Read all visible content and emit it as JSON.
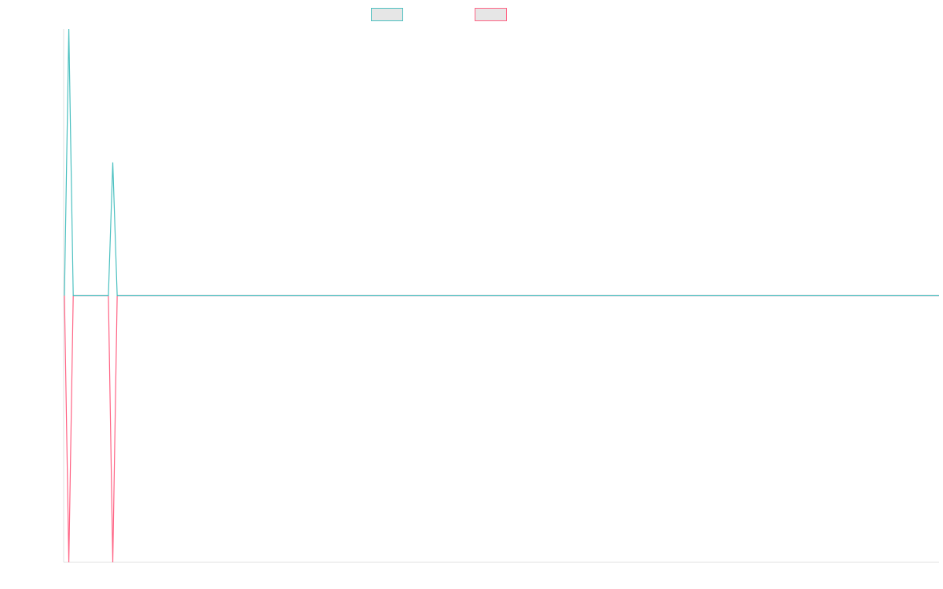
{
  "chart_data": {
    "type": "line",
    "title": "",
    "xlabel": "",
    "ylabel": "",
    "grid": false,
    "legend_position": "top-center",
    "x_count": 200,
    "ylim": [
      -1,
      1
    ],
    "series": [
      {
        "name": "",
        "color": "#4bc0c0",
        "fill": "#e6e6e6",
        "points": [
          [
            0,
            0
          ],
          [
            1,
            1
          ],
          [
            2,
            0
          ],
          [
            10,
            0
          ],
          [
            11,
            0.5
          ],
          [
            12,
            0
          ],
          [
            199,
            0
          ]
        ]
      },
      {
        "name": "",
        "color": "#ff6384",
        "fill": "#e6e6e6",
        "points": [
          [
            0,
            0
          ],
          [
            1,
            -1
          ],
          [
            2,
            0
          ],
          [
            10,
            0
          ],
          [
            11,
            -1
          ],
          [
            12,
            0
          ],
          [
            199,
            0
          ]
        ]
      }
    ]
  }
}
